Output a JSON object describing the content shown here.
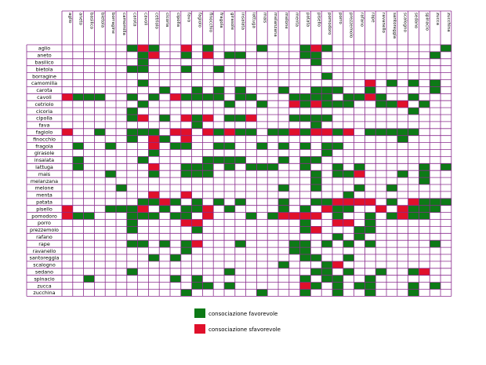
{
  "chart_data": {
    "type": "heatmap",
    "title": "",
    "columns": [
      "aglio",
      "aneto",
      "basilico",
      "bietola",
      "borragine",
      "camomilla",
      "carota",
      "cavoli",
      "cetriolo",
      "cicoria",
      "cipolla",
      "fava",
      "fagiolo",
      "finocchio",
      "fragola",
      "girasole",
      "insalata",
      "lattuga",
      "mais",
      "melanzana",
      "melone",
      "menta",
      "patata",
      "pisello",
      "pomodoro",
      "porro",
      "prezzemolo",
      "rafano",
      "rape",
      "ravanello",
      "santoreggia",
      "scalogno",
      "sedano",
      "spinacio",
      "zucca",
      "zucchina"
    ],
    "rows": [
      "aglio",
      "aneto",
      "basilico",
      "bietola",
      "borragine",
      "camomilla",
      "carota",
      "cavoli",
      "cetriolo",
      "cicoria",
      "cipolla",
      "fava",
      "fagiolo",
      "finocchio",
      "fragola",
      "girasole",
      "insalata",
      "lattuga",
      "mais",
      "melanzana",
      "melone",
      "menta",
      "patata",
      "pisello",
      "pomodoro",
      "porro",
      "prezzemolo",
      "rafano",
      "rape",
      "ravanello",
      "santoreggia",
      "scalogno",
      "sedano",
      "spinacio",
      "zucca",
      "zucchina"
    ],
    "legend": [
      {
        "value": "G",
        "label": "consociazione favorevole",
        "color": "#0d7a16"
      },
      {
        "value": "R",
        "label": "consociazione sfavorevole",
        "color": "#e0102b"
      }
    ],
    "matrix": [
      "......GRG..R.G....G...GRG..........G",
      ".......GR..G.R.GG.....GG..........G.",
      ".......G...............G............",
      "......GG...G..G.....................",
      "........................G...........",
      ".......G....................R.G.G.G.",
      ".........G..G.G.G...G..GGG..G.....G.",
      "RGGG..G.G.RGGGG.GG...GGGG.GGRG..G...",
      ".......G.......G..G..RGRGGG..GGR.G..",
      "......G.........................G...",
      "......GR.G.RGR.GGR...GGGG...........",
      "............G..........G............",
      "R..G..GGG.RR.RGRGG.GGRGRRGR.GGGGG...",
      "......G.RG.R...................G....",
      ".G..G...R.GG..GG..G.G.G.GG..........",
      "........G...............G...........",
      ".G.....G.....GGGG...G.GG............",
      ".G......R..GGG.G.GGG..G..G.G.....G.G",
      "....G...G..GGG.........G.GGR...G.G..",
      ".......................G.........G..",
      ".....G..............G..G...G..G.....",
      "........R..R..............G.........",
      ".......GGRG.G.G.G...G..GGRRRR.G.RGGG",
      "R...GGGR.G.GGR.G....G.G.RGG..R.RGGG.",
      "RGG...GGG.GG.R...G.GRRRR.G..G.GRGG..",
      "......G....RR.........G..RR.G.......",
      "......G.....G.........GR...GG.......",
      ".........................G.G........",
      "......GG.G.GR...G....GG.G.G.G.....G.",
      "...........G.........GG.............",
      "........G.G...........GG..G.........",
      "....................G...GR..........",
      "......G........G.......GG.G..G..GR..",
      "..G.......G.G.........G.GG..G.......",
      "............GG.G......RG.G.GG...G.G.",
      "...........G......G...G..G..G...G..."
    ]
  }
}
